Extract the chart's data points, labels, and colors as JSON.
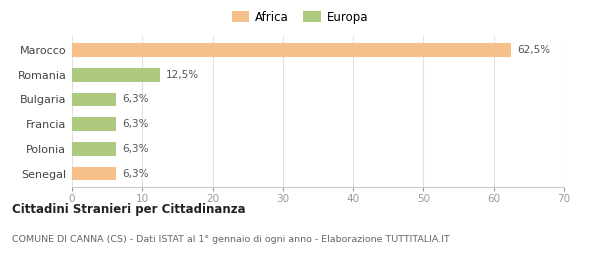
{
  "categories": [
    "Senegal",
    "Polonia",
    "Francia",
    "Bulgaria",
    "Romania",
    "Marocco"
  ],
  "values": [
    6.3,
    6.3,
    6.3,
    6.3,
    12.5,
    62.5
  ],
  "labels": [
    "6,3%",
    "6,3%",
    "6,3%",
    "6,3%",
    "12,5%",
    "62,5%"
  ],
  "colors": [
    "#f5c08a",
    "#adc97e",
    "#adc97e",
    "#adc97e",
    "#adc97e",
    "#f5c08a"
  ],
  "legend": [
    {
      "label": "Africa",
      "color": "#f5c08a"
    },
    {
      "label": "Europa",
      "color": "#adc97e"
    }
  ],
  "xlim": [
    0,
    70
  ],
  "xticks": [
    0,
    10,
    20,
    30,
    40,
    50,
    60,
    70
  ],
  "title_bold": "Cittadini Stranieri per Cittadinanza",
  "subtitle": "COMUNE DI CANNA (CS) - Dati ISTAT al 1° gennaio di ogni anno - Elaborazione TUTTITALIA.IT",
  "bg_color": "#ffffff",
  "grid_color": "#e0e0e0",
  "bar_height": 0.55
}
